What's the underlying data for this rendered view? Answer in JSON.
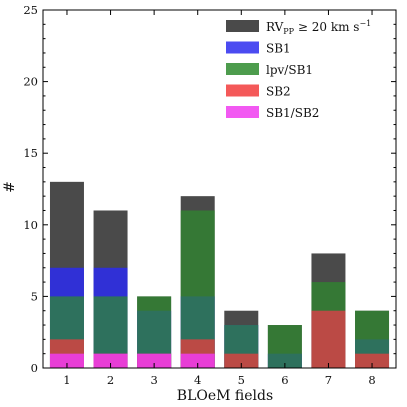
{
  "chart_data": {
    "type": "bar",
    "xlabel": "BLOeM fields",
    "ylabel": "#",
    "ylim": [
      0,
      25
    ],
    "yticks": [
      0,
      5,
      10,
      15,
      20,
      25
    ],
    "categories": [
      "1",
      "2",
      "3",
      "4",
      "5",
      "6",
      "7",
      "8"
    ],
    "grid": false,
    "legend_position": "top-right",
    "series": [
      {
        "key": "rvpp",
        "name_parts": [
          "RV",
          "PP",
          " ≥ 20 km s",
          "−1"
        ],
        "color": "#4a4a4a",
        "values": [
          13,
          11,
          5,
          12,
          4,
          3,
          8,
          4
        ]
      },
      {
        "key": "sb1",
        "name": "SB1",
        "color": "#2b2bef",
        "values": [
          7,
          7,
          4,
          5,
          3,
          1,
          4,
          2
        ]
      },
      {
        "key": "lpv",
        "name": "lpv/SB1",
        "color": "#2e8b2e",
        "values": [
          5,
          5,
          5,
          11,
          3,
          3,
          6,
          4
        ]
      },
      {
        "key": "sb2",
        "name": "SB2",
        "color": "#f23c3c",
        "values": [
          2,
          1,
          1,
          2,
          1,
          0,
          4,
          1
        ]
      },
      {
        "key": "sb1sb2",
        "name": "SB1/SB2",
        "color": "#f03cf0",
        "values": [
          1,
          1,
          1,
          1,
          0,
          0,
          0,
          0
        ]
      }
    ]
  }
}
